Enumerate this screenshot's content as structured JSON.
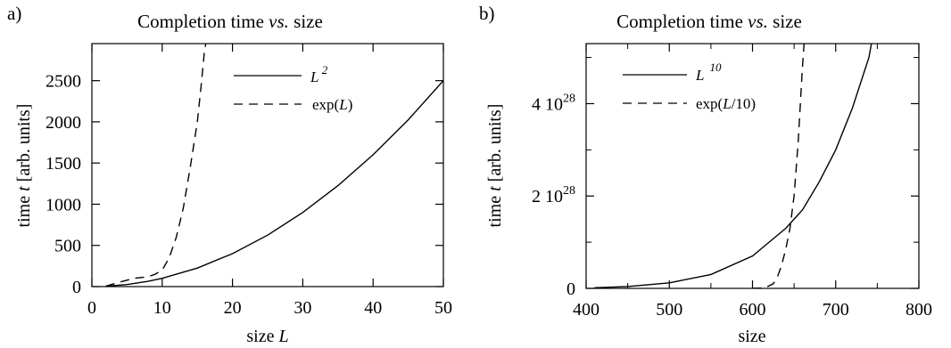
{
  "chart_data": [
    {
      "panel_label": "a)",
      "type": "line",
      "title_main": "Completion time ",
      "title_em": "vs.",
      "title_tail": " size",
      "xlabel_main": "size ",
      "xlabel_em": "L",
      "ylabel_main": "time ",
      "ylabel_em": "t",
      "ylabel_tail": " [arb. units]",
      "xlim": [
        0,
        50
      ],
      "ylim": [
        0,
        2950
      ],
      "xticks": [
        0,
        10,
        20,
        30,
        40,
        50
      ],
      "xtick_labels": [
        "0",
        "10",
        "20",
        "30",
        "40",
        "50"
      ],
      "yticks": [
        0,
        500,
        1000,
        1500,
        2000,
        2500
      ],
      "ytick_labels": [
        "0",
        "500",
        "1000",
        "1500",
        "2000",
        "2500"
      ],
      "legend_position": "top-right",
      "series": [
        {
          "name_base": "L",
          "name_sup": " 2",
          "style": "solid",
          "x": [
            2,
            5,
            8,
            10,
            15,
            20,
            25,
            30,
            35,
            40,
            45,
            50
          ],
          "y": [
            4,
            25,
            64,
            100,
            225,
            400,
            625,
            900,
            1225,
            1600,
            2025,
            2500
          ]
        },
        {
          "name_pre": "exp(",
          "name_em": "L",
          "name_post": ")",
          "style": "dashed",
          "x": [
            2,
            4,
            6,
            8,
            9,
            10,
            11,
            12,
            13,
            14,
            15,
            15.5,
            16,
            16.2
          ],
          "y": [
            7,
            55,
            100,
            120,
            150,
            200,
            350,
            600,
            950,
            1450,
            2000,
            2400,
            2850,
            2950
          ]
        }
      ]
    },
    {
      "panel_label": "b)",
      "type": "line",
      "title_main": "Completion time ",
      "title_em": "vs.",
      "title_tail": " size",
      "xlabel_main": "size",
      "ylabel_main": "time ",
      "ylabel_em": "t",
      "ylabel_tail": " [arb. units]",
      "xlim": [
        400,
        800
      ],
      "ylim": [
        0,
        5.3e+28
      ],
      "xticks": [
        400,
        500,
        600,
        700,
        800
      ],
      "xtick_labels": [
        "400",
        "500",
        "600",
        "700",
        "800"
      ],
      "xtick_minor": [
        450,
        550,
        650,
        750
      ],
      "yticks": [
        0,
        2e+28,
        4e+28
      ],
      "ytick_labels": [
        {
          "base": "0",
          "exp": ""
        },
        {
          "base": "2 10",
          "exp": "28"
        },
        {
          "base": "4 10",
          "exp": "28"
        }
      ],
      "ytick_minor": [
        1e+28,
        3e+28,
        5e+28
      ],
      "legend_position": "top-left",
      "series": [
        {
          "name_base": "L",
          "name_sup": "10",
          "style": "solid",
          "x": [
            410,
            450,
            500,
            550,
            600,
            620,
            640,
            660,
            680,
            700,
            720,
            740,
            743
          ],
          "y": [
            1.3e+26,
            4e+26,
            1.2e+27,
            3e+27,
            7e+27,
            1e+28,
            1.3e+28,
            1.7e+28,
            2.3e+28,
            3e+28,
            3.9e+28,
            5e+28,
            5.3e+28
          ]
        },
        {
          "name_pre": "exp(",
          "name_em": "L",
          "name_post": "/10)",
          "style": "dashed",
          "x": [
            600,
            615,
            625,
            630,
            635,
            640,
            645,
            650,
            655,
            660,
            662
          ],
          "y": [
            0,
            1e+26,
            1e+27,
            2.5e+27,
            5e+27,
            8.5e+27,
            1.3e+28,
            2e+28,
            3.2e+28,
            4.8e+28,
            5.3e+28
          ]
        }
      ]
    }
  ]
}
